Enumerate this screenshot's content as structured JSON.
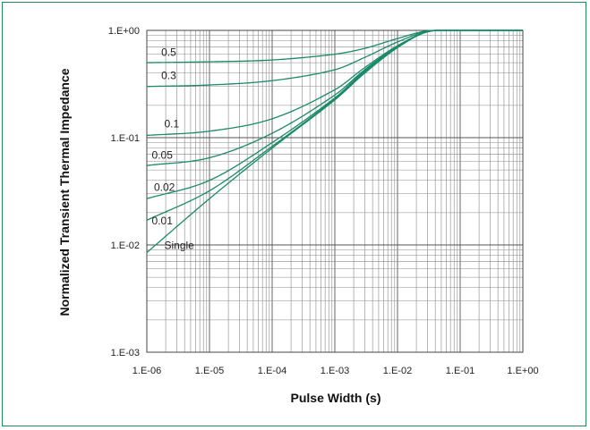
{
  "chart_data": {
    "type": "line",
    "title": "",
    "xlabel": "Pulse Width (s)",
    "ylabel": "Normalized  Transient Thermal Impedance",
    "x_scale": "log",
    "y_scale": "log",
    "xlim": [
      1e-06,
      1
    ],
    "ylim": [
      0.001,
      1
    ],
    "grid": true,
    "x_tick_labels": [
      "1.E-06",
      "1.E-05",
      "1.E-04",
      "1.E-03",
      "1.E-02",
      "1.E-01",
      "1.E+00"
    ],
    "y_tick_labels": [
      "1.E+00",
      "1.E-01",
      "1.E-02",
      "1.E-03"
    ],
    "line_color": "#1a8a6a",
    "series": [
      {
        "name": "0.5",
        "x": [
          1e-06,
          1e-05,
          0.0001,
          0.001,
          0.003,
          0.01,
          0.03,
          0.1,
          1
        ],
        "y": [
          0.5,
          0.51,
          0.53,
          0.6,
          0.68,
          0.84,
          0.99,
          1.0,
          1.0
        ]
      },
      {
        "name": "0.3",
        "x": [
          1e-06,
          1e-05,
          0.0001,
          0.001,
          0.003,
          0.01,
          0.03,
          0.1,
          1
        ],
        "y": [
          0.3,
          0.31,
          0.34,
          0.43,
          0.56,
          0.78,
          0.98,
          1.0,
          1.0
        ]
      },
      {
        "name": "0.1",
        "x": [
          1e-06,
          1e-05,
          0.0001,
          0.001,
          0.003,
          0.01,
          0.03,
          0.1,
          1
        ],
        "y": [
          0.105,
          0.115,
          0.15,
          0.28,
          0.45,
          0.72,
          0.97,
          1.0,
          1.0
        ]
      },
      {
        "name": "0.05",
        "x": [
          1e-06,
          1e-05,
          0.0001,
          0.001,
          0.003,
          0.01,
          0.03,
          0.1,
          1
        ],
        "y": [
          0.055,
          0.065,
          0.11,
          0.25,
          0.43,
          0.71,
          0.97,
          1.0,
          1.0
        ]
      },
      {
        "name": "0.02",
        "x": [
          1e-06,
          1e-05,
          0.0001,
          0.001,
          0.003,
          0.01,
          0.03,
          0.1,
          1
        ],
        "y": [
          0.027,
          0.04,
          0.09,
          0.235,
          0.42,
          0.7,
          0.97,
          1.0,
          1.0
        ]
      },
      {
        "name": "0.01",
        "x": [
          1e-06,
          1e-05,
          0.0001,
          0.001,
          0.003,
          0.01,
          0.03,
          0.1,
          1
        ],
        "y": [
          0.017,
          0.032,
          0.083,
          0.23,
          0.41,
          0.7,
          0.97,
          1.0,
          1.0
        ]
      },
      {
        "name": "Single",
        "x": [
          1e-06,
          1e-05,
          0.0001,
          0.001,
          0.003,
          0.01,
          0.03,
          0.1,
          1
        ],
        "y": [
          0.0085,
          0.027,
          0.08,
          0.225,
          0.4,
          0.69,
          0.97,
          1.0,
          1.0
        ]
      }
    ]
  }
}
